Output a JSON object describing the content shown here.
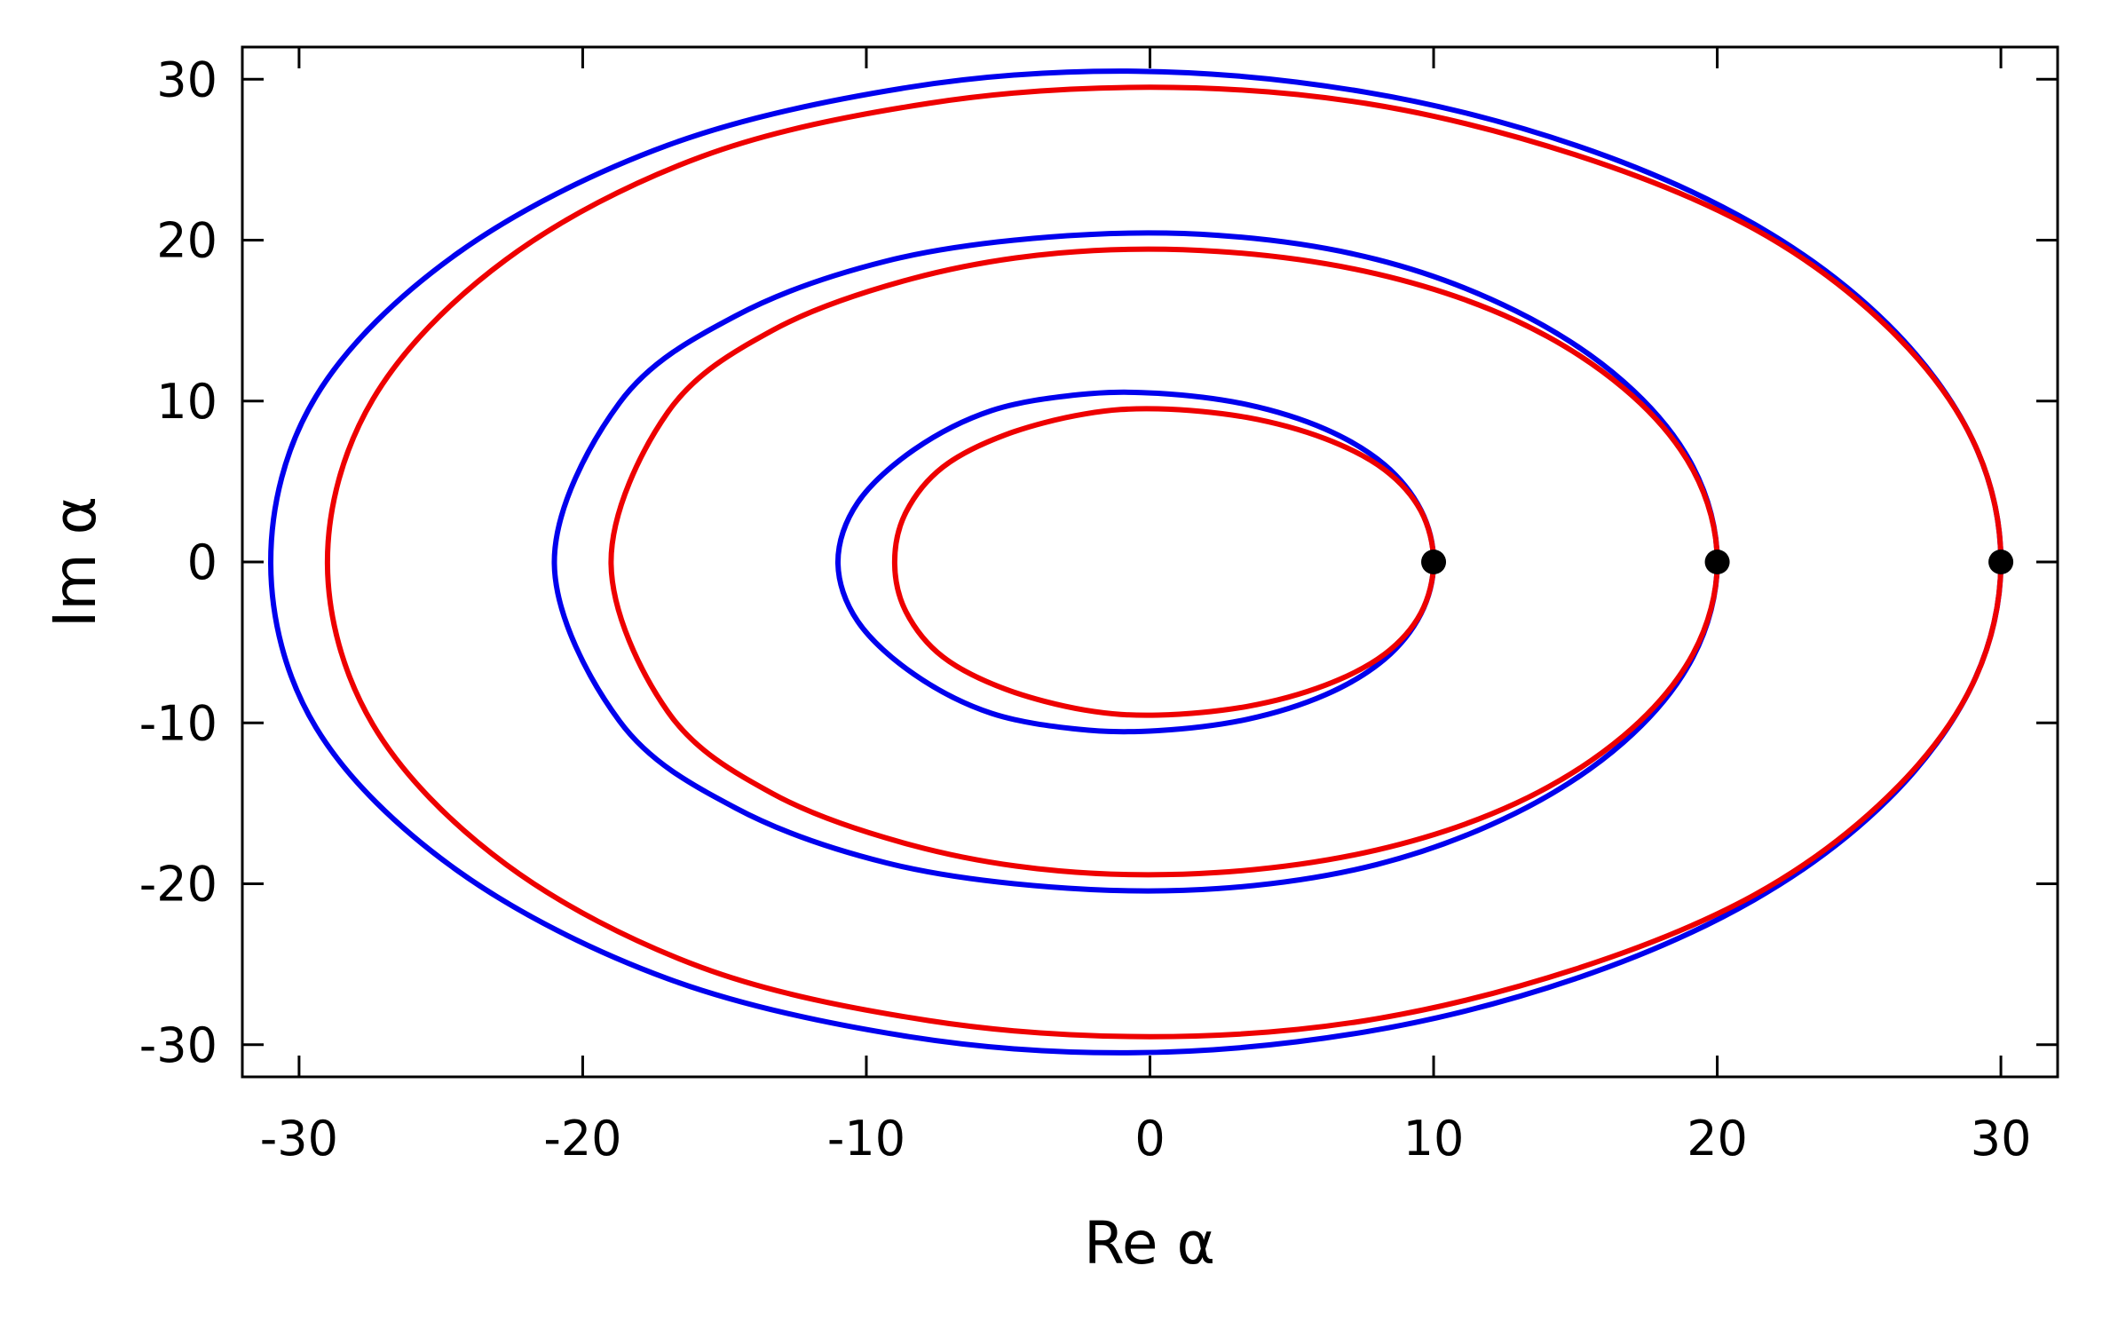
{
  "chart_data": {
    "type": "line",
    "title": "",
    "xlabel": "Re α",
    "ylabel": "Im α",
    "xlim": [
      -32,
      32
    ],
    "ylim": [
      -32,
      32
    ],
    "xticks": [
      -30,
      -20,
      -10,
      0,
      10,
      20,
      30
    ],
    "yticks": [
      -30,
      -20,
      -10,
      0,
      10,
      20,
      30
    ],
    "xtick_labels": [
      "-30",
      "-20",
      "-10",
      "0",
      "10",
      "20",
      "30"
    ],
    "ytick_labels": [
      "-30",
      "-20",
      "-10",
      "0",
      "10",
      "20",
      "30"
    ],
    "grid": false,
    "legend": "none",
    "colors": {
      "blue": "#0000ee",
      "red": "#ee0000",
      "points": "#000000"
    },
    "series": [
      {
        "color": "#0000ee",
        "points": [
          [
            10.0,
            0.0
          ],
          [
            9.55,
            3.23
          ],
          [
            8.27,
            6.04
          ],
          [
            6.19,
            8.25
          ],
          [
            3.42,
            9.78
          ],
          [
            0.28,
            10.48
          ],
          [
            -2.5,
            10.4
          ],
          [
            -5.6,
            9.4
          ],
          [
            -8.3,
            7.0
          ],
          [
            -10.3,
            3.7
          ],
          [
            -11.0,
            0.0
          ],
          [
            -10.3,
            -3.7
          ],
          [
            -8.3,
            -7.0
          ],
          [
            -5.6,
            -9.4
          ],
          [
            -2.5,
            -10.4
          ],
          [
            0.28,
            -10.48
          ],
          [
            3.42,
            -9.78
          ],
          [
            6.19,
            -8.25
          ],
          [
            8.27,
            -6.04
          ],
          [
            9.55,
            -3.23
          ],
          [
            10.0,
            0.0
          ]
        ]
      },
      {
        "color": "#ee0000",
        "points": [
          [
            10.0,
            0.0
          ],
          [
            9.55,
            3.17
          ],
          [
            8.27,
            5.73
          ],
          [
            6.19,
            7.65
          ],
          [
            3.42,
            8.98
          ],
          [
            0.28,
            9.52
          ],
          [
            -2.3,
            9.2
          ],
          [
            -5.1,
            7.9
          ],
          [
            -7.3,
            5.9
          ],
          [
            -8.6,
            3.1
          ],
          [
            -9.0,
            0.0
          ],
          [
            -8.6,
            -3.1
          ],
          [
            -7.3,
            -5.9
          ],
          [
            -5.1,
            -7.9
          ],
          [
            -2.3,
            -9.2
          ],
          [
            0.28,
            -9.52
          ],
          [
            3.42,
            -8.98
          ],
          [
            6.19,
            -7.65
          ],
          [
            8.27,
            -5.73
          ],
          [
            9.55,
            -3.17
          ],
          [
            10.0,
            0.0
          ]
        ]
      },
      {
        "color": "#0000ee",
        "points": [
          [
            20.0,
            0.0
          ],
          [
            19.15,
            5.9
          ],
          [
            16.7,
            11.2
          ],
          [
            12.9,
            15.6
          ],
          [
            8.0,
            18.8
          ],
          [
            2.4,
            20.3
          ],
          [
            -3.5,
            20.2
          ],
          [
            -9.3,
            18.7
          ],
          [
            -14.6,
            15.3
          ],
          [
            -18.7,
            9.9
          ],
          [
            -21.0,
            0.0
          ],
          [
            -18.7,
            -9.9
          ],
          [
            -14.6,
            -15.3
          ],
          [
            -9.3,
            -18.7
          ],
          [
            -3.5,
            -20.2
          ],
          [
            2.4,
            -20.3
          ],
          [
            8.0,
            -18.8
          ],
          [
            12.9,
            -15.6
          ],
          [
            16.7,
            -11.2
          ],
          [
            19.15,
            -5.9
          ],
          [
            20.0,
            0.0
          ]
        ]
      },
      {
        "color": "#ee0000",
        "points": [
          [
            20.0,
            0.0
          ],
          [
            19.15,
            5.7
          ],
          [
            16.7,
            10.8
          ],
          [
            12.9,
            15.0
          ],
          [
            8.0,
            17.9
          ],
          [
            2.4,
            19.3
          ],
          [
            -3.2,
            19.2
          ],
          [
            -8.4,
            17.6
          ],
          [
            -13.3,
            14.4
          ],
          [
            -17.0,
            9.3
          ],
          [
            -19.0,
            0.0
          ],
          [
            -17.0,
            -9.3
          ],
          [
            -13.3,
            -14.4
          ],
          [
            -8.4,
            -17.6
          ],
          [
            -3.2,
            -19.2
          ],
          [
            2.4,
            -19.3
          ],
          [
            8.0,
            -17.9
          ],
          [
            12.9,
            -15.0
          ],
          [
            16.7,
            -10.8
          ],
          [
            19.15,
            -5.7
          ],
          [
            20.0,
            0.0
          ]
        ]
      },
      {
        "color": "#0000ee",
        "points": [
          [
            30.0,
            0.0
          ],
          [
            29.0,
            7.6
          ],
          [
            26.0,
            14.8
          ],
          [
            21.3,
            21.0
          ],
          [
            15.0,
            25.9
          ],
          [
            7.6,
            29.2
          ],
          [
            -0.5,
            30.5
          ],
          [
            -8.5,
            29.5
          ],
          [
            -17.0,
            25.9
          ],
          [
            -24.4,
            19.2
          ],
          [
            -29.4,
            10.3
          ],
          [
            -31.0,
            0.0
          ],
          [
            -29.4,
            -10.3
          ],
          [
            -24.4,
            -19.2
          ],
          [
            -17.0,
            -25.9
          ],
          [
            -8.5,
            -29.5
          ],
          [
            -0.5,
            -30.5
          ],
          [
            7.6,
            -29.2
          ],
          [
            15.0,
            -25.9
          ],
          [
            21.3,
            -21.0
          ],
          [
            26.0,
            -14.8
          ],
          [
            29.0,
            -7.6
          ],
          [
            30.0,
            0.0
          ]
        ]
      },
      {
        "color": "#ee0000",
        "points": [
          [
            30.0,
            0.0
          ],
          [
            29.0,
            7.6
          ],
          [
            26.0,
            14.6
          ],
          [
            21.3,
            20.7
          ],
          [
            15.0,
            25.3
          ],
          [
            7.6,
            28.5
          ],
          [
            0.0,
            29.5
          ],
          [
            -7.8,
            28.5
          ],
          [
            -15.8,
            25.2
          ],
          [
            -22.7,
            18.8
          ],
          [
            -27.4,
            10.1
          ],
          [
            -29.0,
            0.0
          ],
          [
            -27.4,
            -10.1
          ],
          [
            -22.7,
            -18.8
          ],
          [
            -15.8,
            -25.2
          ],
          [
            -7.8,
            -28.5
          ],
          [
            0.0,
            -29.5
          ],
          [
            7.6,
            -28.5
          ],
          [
            15.0,
            -25.3
          ],
          [
            21.3,
            -20.7
          ],
          [
            26.0,
            -14.6
          ],
          [
            29.0,
            -7.6
          ],
          [
            30.0,
            0.0
          ]
        ]
      }
    ],
    "markers": [
      [
        10,
        0
      ],
      [
        20,
        0
      ],
      [
        30,
        0
      ]
    ]
  }
}
